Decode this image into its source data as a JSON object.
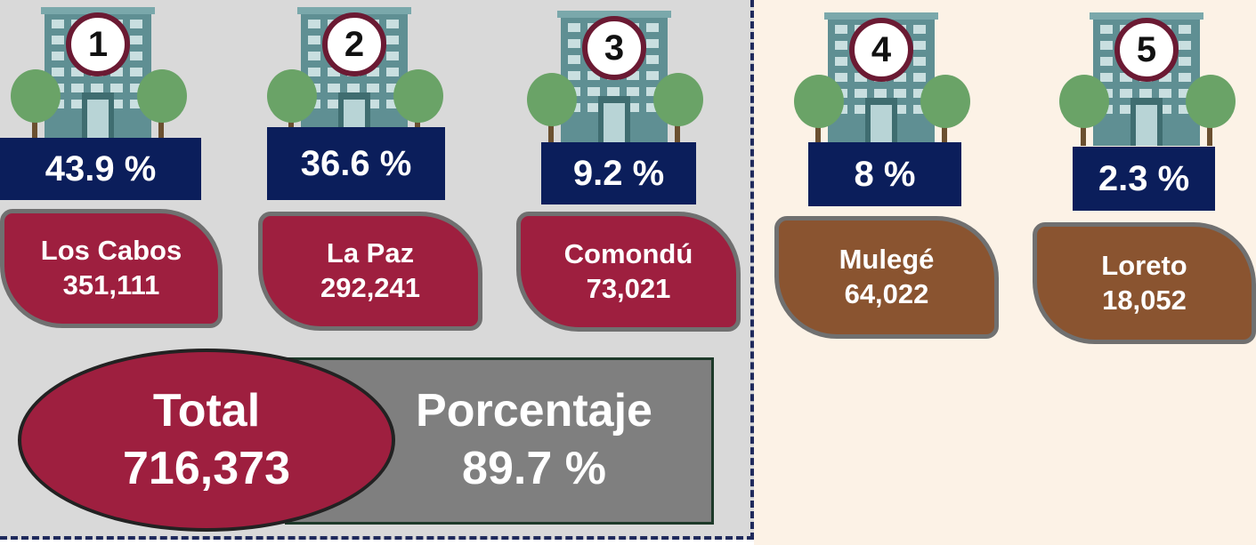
{
  "items": [
    {
      "rank": "1",
      "percent": "43.9 %",
      "name": "Los Cabos",
      "population": "351,111"
    },
    {
      "rank": "2",
      "percent": "36.6 %",
      "name": "La Paz",
      "population": "292,241"
    },
    {
      "rank": "3",
      "percent": "9.2 %",
      "name": "Comondú",
      "population": "73,021"
    },
    {
      "rank": "4",
      "percent": "8 %",
      "name": "Mulegé",
      "population": "64,022"
    },
    {
      "rank": "5",
      "percent": "2.3 %",
      "name": "Loreto",
      "population": "18,052"
    }
  ],
  "total": {
    "label": "Total",
    "value": "716,373"
  },
  "percentage": {
    "label": "Porcentaje",
    "value": "89.7 %"
  }
}
